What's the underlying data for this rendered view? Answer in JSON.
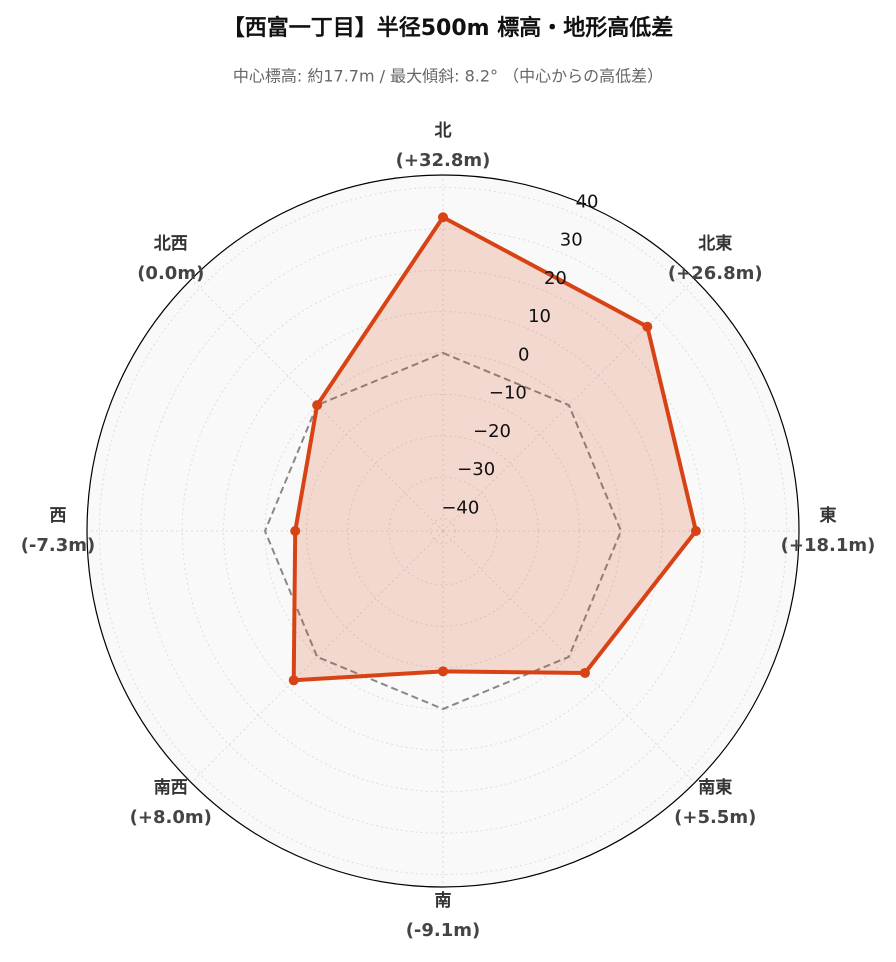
{
  "chart_data": {
    "type": "radar",
    "title": "【西富一丁目】半径500m 標高・地形高低差",
    "subtitle": "中心標高: 約17.7m / 最大傾斜: 8.2° （中心からの高低差）",
    "categories": [
      "北",
      "北東",
      "東",
      "南東",
      "南",
      "南西",
      "西",
      "北西"
    ],
    "values": [
      32.8,
      26.8,
      18.1,
      5.5,
      -9.1,
      8.0,
      -7.3,
      0.0
    ],
    "value_labels": [
      "(+32.8m)",
      "(+26.8m)",
      "(+18.1m)",
      "(+5.5m)",
      "(-9.1m)",
      "(+8.0m)",
      "(-7.3m)",
      "(0.0m)"
    ],
    "color": "#d84315",
    "baseline": 0,
    "rlim": [
      -43,
      43
    ],
    "rticks": [
      {
        "value": -40,
        "label": "−40"
      },
      {
        "value": -30,
        "label": "−30"
      },
      {
        "value": -20,
        "label": "−20"
      },
      {
        "value": -10,
        "label": "−10"
      },
      0,
      10,
      20,
      30,
      40
    ],
    "grid": true
  }
}
